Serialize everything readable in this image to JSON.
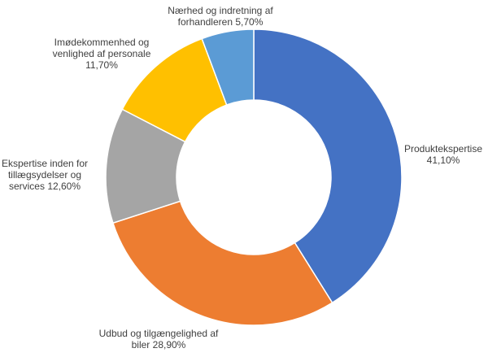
{
  "chart_data": {
    "type": "donut",
    "categories": [
      "Produktekspertise",
      "Udbud og tilgængelighed af biler",
      "Ekspertise inden for tillægsydelser og services",
      "Imødekommenhed og venlighed af personale",
      "Nærhed og indretning af forhandleren"
    ],
    "values": [
      41.1,
      28.9,
      12.6,
      11.7,
      5.7
    ],
    "value_labels": [
      "41,10%",
      "28,90%",
      "12,60%",
      "11,70%",
      "5,70%"
    ],
    "colors": [
      "#4472c4",
      "#ed7d31",
      "#a5a5a5",
      "#ffc000",
      "#5b9bd5"
    ]
  }
}
